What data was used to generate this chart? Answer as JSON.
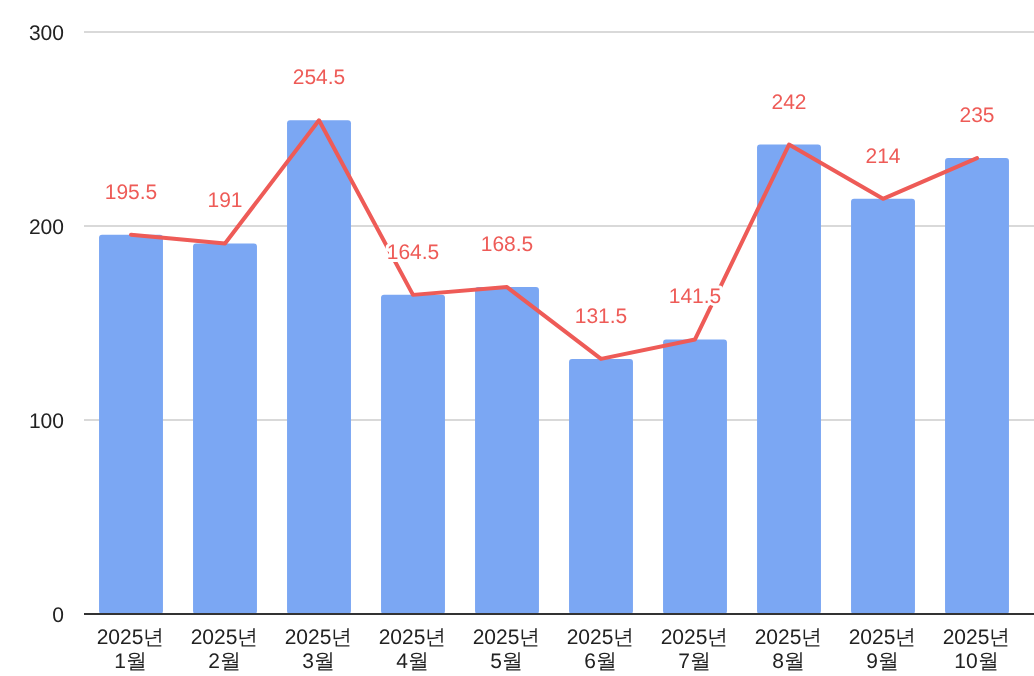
{
  "chart_data": {
    "type": "bar",
    "categories": [
      "2025년 1월",
      "2025년 2월",
      "2025년 3월",
      "2025년 4월",
      "2025년 5월",
      "2025년 6월",
      "2025년 7월",
      "2025년 8월",
      "2025년 9월",
      "2025년 10월"
    ],
    "series": [
      {
        "color": "#7ba7f3",
        "values": [
          195.5,
          191,
          254.5,
          164.5,
          168.5,
          131.5,
          141.5,
          242,
          214,
          235
        ]
      },
      {
        "type": "line",
        "color": "#ee5b57",
        "values": [
          195.5,
          191,
          254.5,
          164.5,
          168.5,
          131.5,
          141.5,
          242,
          214,
          235
        ],
        "value_labels": [
          "195.5",
          "191",
          "254.5",
          "164.5",
          "168.5",
          "131.5",
          "141.5",
          "242",
          "214",
          "235"
        ]
      }
    ],
    "ylim": [
      0,
      300
    ],
    "yticks": [
      0,
      100,
      200,
      300
    ],
    "grid": "y"
  }
}
